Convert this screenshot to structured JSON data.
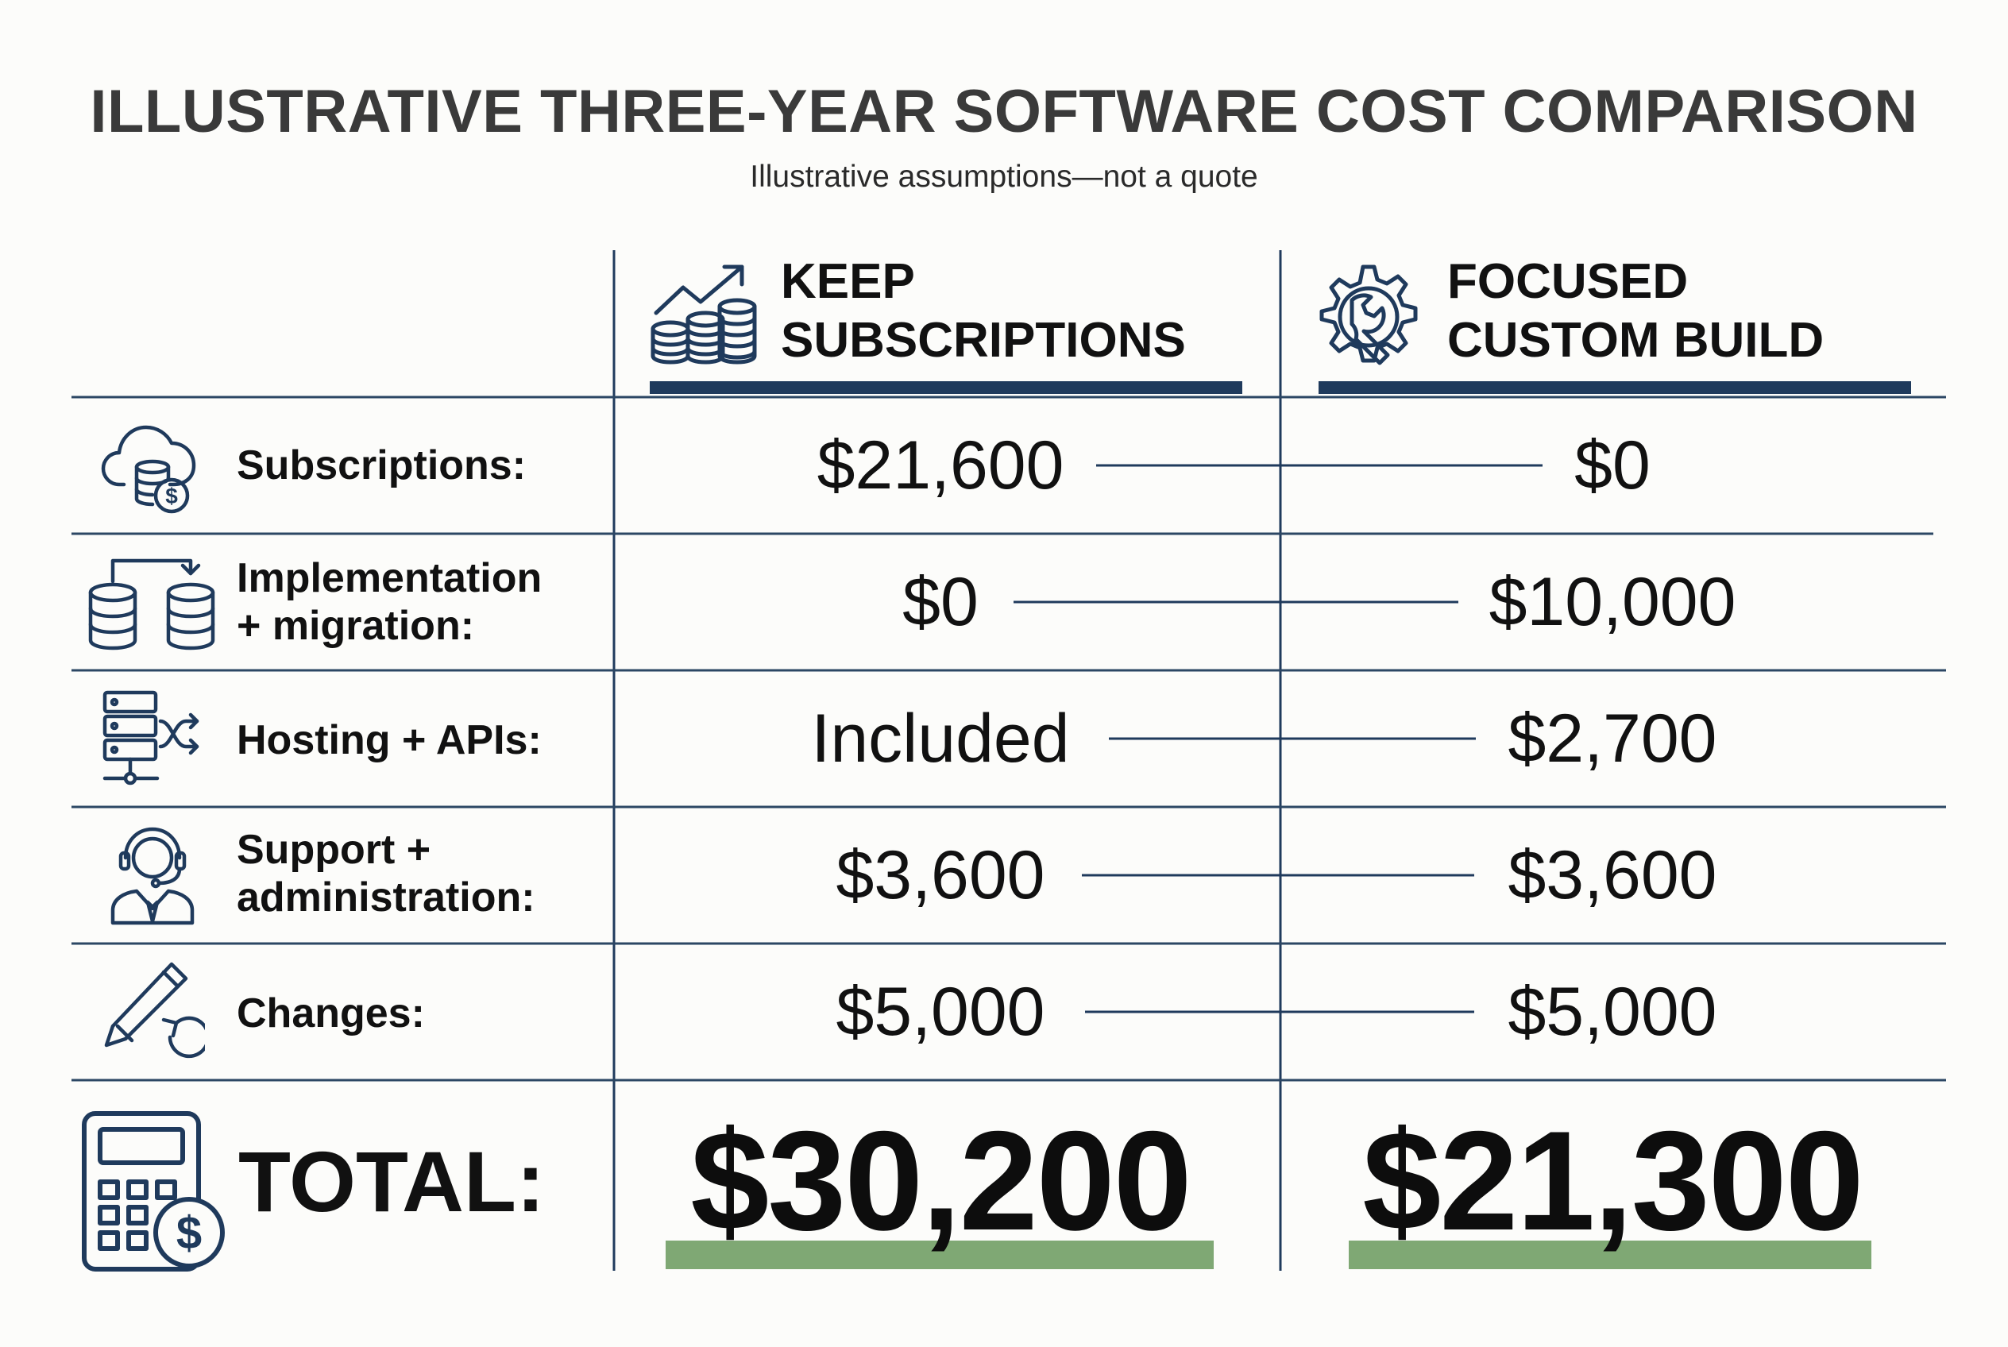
{
  "title": "ILLUSTRATIVE THREE-YEAR SOFTWARE COST COMPARISON",
  "subtitle": "Illustrative assumptions—not a quote",
  "columns": [
    {
      "line1": "KEEP",
      "line2": "SUBSCRIPTIONS",
      "icon": "coins-growth-icon"
    },
    {
      "line1": "FOCUSED",
      "line2": "CUSTOM BUILD",
      "icon": "gear-wrench-icon"
    }
  ],
  "rows": [
    {
      "label_lines": [
        "Subscriptions:"
      ],
      "icon": "cloud-coins-icon",
      "keep": "$21,600",
      "custom": "$0"
    },
    {
      "label_lines": [
        "Implementation",
        "+ migration:"
      ],
      "icon": "database-migration-icon",
      "keep": "$0",
      "custom": "$10,000"
    },
    {
      "label_lines": [
        "Hosting + APIs:"
      ],
      "icon": "server-network-icon",
      "keep": "Included",
      "custom": "$2,700"
    },
    {
      "label_lines": [
        "Support +",
        "administration:"
      ],
      "icon": "support-agent-icon",
      "keep": "$3,600",
      "custom": "$3,600"
    },
    {
      "label_lines": [
        "Changes:"
      ],
      "icon": "pencil-undo-icon",
      "keep": "$5,000",
      "custom": "$5,000"
    }
  ],
  "total": {
    "label": "TOTAL:",
    "keep": "$30,200",
    "custom": "$21,300",
    "icon": "calculator-dollar-icon"
  },
  "colors": {
    "navy": "#1f3a5c",
    "line": "#2c4764",
    "green": "#7fa874",
    "title": "#3a3a3a"
  }
}
